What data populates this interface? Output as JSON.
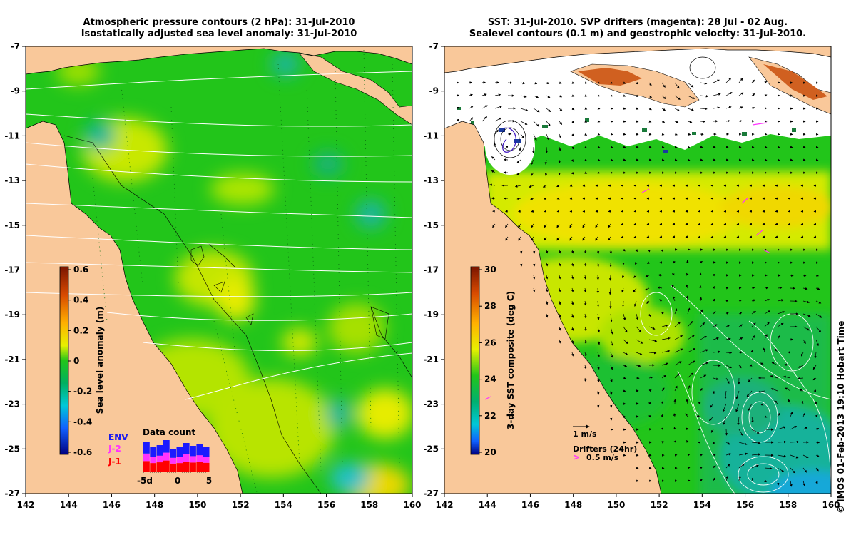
{
  "left_map": {
    "title_line1": "Atmospheric pressure contours (2 hPa): 31-Jul-2010",
    "title_line2": "Isostatically adjusted sea level anomaly: 31-Jul-2010",
    "colorbar": {
      "label": "Sea level anomaly (m)",
      "ticks": [
        "0.6",
        "0.4",
        "0.2",
        "0",
        "-0.2",
        "-0.4",
        "-0.6"
      ]
    },
    "data_count": {
      "title": "Data count",
      "satellites": [
        {
          "label": "ENV",
          "color": "#1a1aff"
        },
        {
          "label": "J-2",
          "color": "#ff33ff"
        },
        {
          "label": "J-1",
          "color": "#ff0000"
        }
      ],
      "obscured_label": "ENV",
      "axis_labels": [
        "-5d",
        "0",
        "5"
      ]
    }
  },
  "right_map": {
    "title_line1": "SST: 31-Jul-2010. SVP drifters (magenta): 28 Jul - 02 Aug.",
    "title_line2": "Sealevel contours (0.1 m) and geostrophic velocity: 31-Jul-2010.",
    "colorbar": {
      "label": "3-day SST composite (deg C)",
      "ticks": [
        "30",
        "28",
        "26",
        "24",
        "22",
        "20"
      ]
    },
    "velocity_scale_label": "1 m/s",
    "drifters_label": "Drifters (24hr)",
    "drifters_scale_label": "0.5 m/s"
  },
  "axes": {
    "lat_labels": [
      "-7",
      "-9",
      "-11",
      "-13",
      "-15",
      "-17",
      "-19",
      "-21",
      "-23",
      "-25",
      "-27"
    ],
    "lon_labels": [
      "142",
      "144",
      "146",
      "148",
      "150",
      "152",
      "154",
      "156",
      "158",
      "160"
    ]
  },
  "colors": {
    "land": "#f9c89a",
    "sea_base": "#22c51a",
    "cloud": "#ffffff"
  },
  "footer": "© IMOS 01-Feb-2013 19:10 Hobart Time"
}
